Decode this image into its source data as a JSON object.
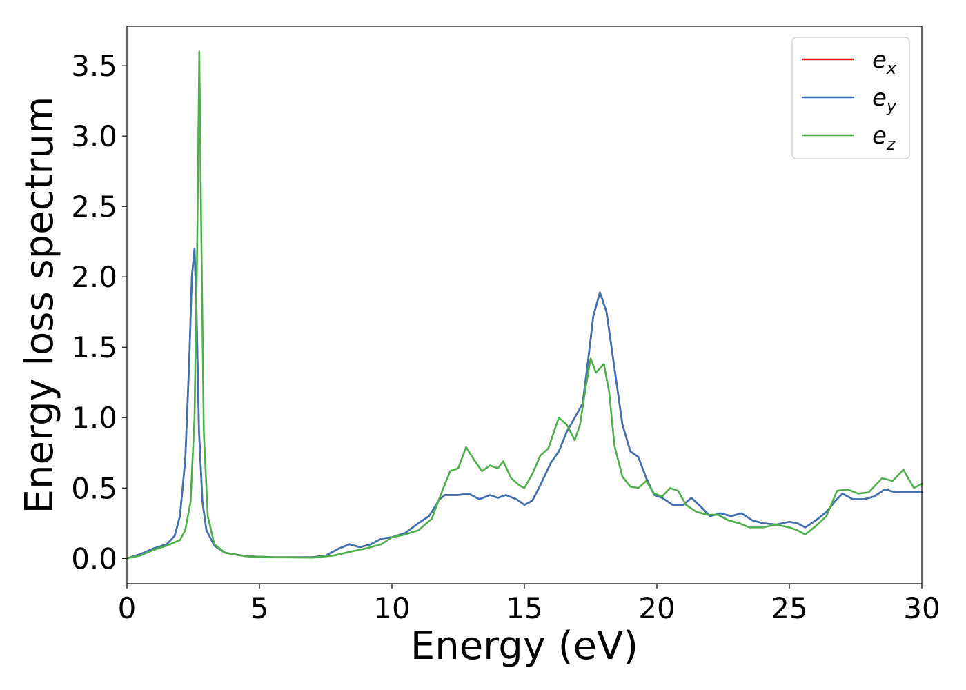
{
  "chart_data": {
    "type": "line",
    "xlabel": "Energy (eV)",
    "ylabel": "Energy loss spectrum",
    "xlim": [
      0,
      30
    ],
    "ylim": [
      -0.18,
      3.78
    ],
    "xticks": [
      0,
      5,
      10,
      15,
      20,
      25,
      30
    ],
    "xtick_labels": [
      "0",
      "5",
      "10",
      "15",
      "20",
      "25",
      "30"
    ],
    "yticks": [
      0.0,
      0.5,
      1.0,
      1.5,
      2.0,
      2.5,
      3.0,
      3.5
    ],
    "ytick_labels": [
      "0.0",
      "0.5",
      "1.0",
      "1.5",
      "2.0",
      "2.5",
      "3.0",
      "3.5"
    ],
    "grid": false,
    "legend_position": "top-right",
    "series": [
      {
        "name": "e",
        "subscript": "x",
        "color": "#e41a1c",
        "points": [
          [
            0,
            0.0
          ],
          [
            0.5,
            0.03
          ],
          [
            1.0,
            0.07
          ],
          [
            1.5,
            0.1
          ],
          [
            1.8,
            0.16
          ],
          [
            2.0,
            0.3
          ],
          [
            2.2,
            0.7
          ],
          [
            2.35,
            1.4
          ],
          [
            2.45,
            2.0
          ],
          [
            2.55,
            2.2
          ],
          [
            2.62,
            1.8
          ],
          [
            2.72,
            0.9
          ],
          [
            2.85,
            0.4
          ],
          [
            3.0,
            0.2
          ],
          [
            3.3,
            0.09
          ],
          [
            3.7,
            0.04
          ],
          [
            4.5,
            0.015
          ],
          [
            5.5,
            0.008
          ],
          [
            7.0,
            0.008
          ],
          [
            7.5,
            0.02
          ],
          [
            8.0,
            0.07
          ],
          [
            8.4,
            0.1
          ],
          [
            8.8,
            0.08
          ],
          [
            9.2,
            0.1
          ],
          [
            9.6,
            0.14
          ],
          [
            10.0,
            0.15
          ],
          [
            10.5,
            0.18
          ],
          [
            11.0,
            0.25
          ],
          [
            11.4,
            0.3
          ],
          [
            11.8,
            0.42
          ],
          [
            12.0,
            0.45
          ],
          [
            12.5,
            0.45
          ],
          [
            12.9,
            0.46
          ],
          [
            13.3,
            0.42
          ],
          [
            13.7,
            0.45
          ],
          [
            14.0,
            0.43
          ],
          [
            14.3,
            0.45
          ],
          [
            14.7,
            0.42
          ],
          [
            15.0,
            0.38
          ],
          [
            15.3,
            0.41
          ],
          [
            15.6,
            0.52
          ],
          [
            16.0,
            0.68
          ],
          [
            16.3,
            0.76
          ],
          [
            16.6,
            0.9
          ],
          [
            16.9,
            1.0
          ],
          [
            17.2,
            1.1
          ],
          [
            17.4,
            1.4
          ],
          [
            17.6,
            1.72
          ],
          [
            17.85,
            1.89
          ],
          [
            18.1,
            1.75
          ],
          [
            18.4,
            1.35
          ],
          [
            18.7,
            0.95
          ],
          [
            19.0,
            0.76
          ],
          [
            19.3,
            0.72
          ],
          [
            19.6,
            0.57
          ],
          [
            19.9,
            0.45
          ],
          [
            20.2,
            0.43
          ],
          [
            20.6,
            0.38
          ],
          [
            21.0,
            0.38
          ],
          [
            21.3,
            0.43
          ],
          [
            21.7,
            0.36
          ],
          [
            22.0,
            0.3
          ],
          [
            22.4,
            0.32
          ],
          [
            22.8,
            0.3
          ],
          [
            23.2,
            0.32
          ],
          [
            23.6,
            0.27
          ],
          [
            24.0,
            0.25
          ],
          [
            24.5,
            0.24
          ],
          [
            25.0,
            0.26
          ],
          [
            25.3,
            0.25
          ],
          [
            25.6,
            0.22
          ],
          [
            26.0,
            0.27
          ],
          [
            26.4,
            0.33
          ],
          [
            26.7,
            0.4
          ],
          [
            27.0,
            0.46
          ],
          [
            27.4,
            0.42
          ],
          [
            27.8,
            0.42
          ],
          [
            28.2,
            0.44
          ],
          [
            28.6,
            0.49
          ],
          [
            29.0,
            0.47
          ],
          [
            29.5,
            0.47
          ],
          [
            30.0,
            0.47
          ]
        ]
      },
      {
        "name": "e",
        "subscript": "y",
        "color": "#3b74b4",
        "points": [
          [
            0,
            0.0
          ],
          [
            0.5,
            0.03
          ],
          [
            1.0,
            0.07
          ],
          [
            1.5,
            0.1
          ],
          [
            1.8,
            0.16
          ],
          [
            2.0,
            0.3
          ],
          [
            2.2,
            0.7
          ],
          [
            2.35,
            1.4
          ],
          [
            2.45,
            2.0
          ],
          [
            2.55,
            2.2
          ],
          [
            2.62,
            1.8
          ],
          [
            2.72,
            0.9
          ],
          [
            2.85,
            0.4
          ],
          [
            3.0,
            0.2
          ],
          [
            3.3,
            0.09
          ],
          [
            3.7,
            0.04
          ],
          [
            4.5,
            0.015
          ],
          [
            5.5,
            0.008
          ],
          [
            7.0,
            0.008
          ],
          [
            7.5,
            0.02
          ],
          [
            8.0,
            0.07
          ],
          [
            8.4,
            0.1
          ],
          [
            8.8,
            0.08
          ],
          [
            9.2,
            0.1
          ],
          [
            9.6,
            0.14
          ],
          [
            10.0,
            0.15
          ],
          [
            10.5,
            0.18
          ],
          [
            11.0,
            0.25
          ],
          [
            11.4,
            0.3
          ],
          [
            11.8,
            0.42
          ],
          [
            12.0,
            0.45
          ],
          [
            12.5,
            0.45
          ],
          [
            12.9,
            0.46
          ],
          [
            13.3,
            0.42
          ],
          [
            13.7,
            0.45
          ],
          [
            14.0,
            0.43
          ],
          [
            14.3,
            0.45
          ],
          [
            14.7,
            0.42
          ],
          [
            15.0,
            0.38
          ],
          [
            15.3,
            0.41
          ],
          [
            15.6,
            0.52
          ],
          [
            16.0,
            0.68
          ],
          [
            16.3,
            0.76
          ],
          [
            16.6,
            0.9
          ],
          [
            16.9,
            1.0
          ],
          [
            17.2,
            1.1
          ],
          [
            17.4,
            1.4
          ],
          [
            17.6,
            1.72
          ],
          [
            17.85,
            1.89
          ],
          [
            18.1,
            1.75
          ],
          [
            18.4,
            1.35
          ],
          [
            18.7,
            0.95
          ],
          [
            19.0,
            0.76
          ],
          [
            19.3,
            0.72
          ],
          [
            19.6,
            0.57
          ],
          [
            19.9,
            0.45
          ],
          [
            20.2,
            0.43
          ],
          [
            20.6,
            0.38
          ],
          [
            21.0,
            0.38
          ],
          [
            21.3,
            0.43
          ],
          [
            21.7,
            0.36
          ],
          [
            22.0,
            0.3
          ],
          [
            22.4,
            0.32
          ],
          [
            22.8,
            0.3
          ],
          [
            23.2,
            0.32
          ],
          [
            23.6,
            0.27
          ],
          [
            24.0,
            0.25
          ],
          [
            24.5,
            0.24
          ],
          [
            25.0,
            0.26
          ],
          [
            25.3,
            0.25
          ],
          [
            25.6,
            0.22
          ],
          [
            26.0,
            0.27
          ],
          [
            26.4,
            0.33
          ],
          [
            26.7,
            0.4
          ],
          [
            27.0,
            0.46
          ],
          [
            27.4,
            0.42
          ],
          [
            27.8,
            0.42
          ],
          [
            28.2,
            0.44
          ],
          [
            28.6,
            0.49
          ],
          [
            29.0,
            0.47
          ],
          [
            29.5,
            0.47
          ],
          [
            30.0,
            0.47
          ]
        ]
      },
      {
        "name": "e",
        "subscript": "z",
        "color": "#4daf4a",
        "points": [
          [
            0,
            0.0
          ],
          [
            0.5,
            0.02
          ],
          [
            1.0,
            0.06
          ],
          [
            1.5,
            0.09
          ],
          [
            2.0,
            0.13
          ],
          [
            2.2,
            0.2
          ],
          [
            2.4,
            0.4
          ],
          [
            2.55,
            1.0
          ],
          [
            2.65,
            2.2
          ],
          [
            2.73,
            3.6
          ],
          [
            2.8,
            2.4
          ],
          [
            2.9,
            0.9
          ],
          [
            3.05,
            0.3
          ],
          [
            3.3,
            0.1
          ],
          [
            3.7,
            0.04
          ],
          [
            4.5,
            0.015
          ],
          [
            5.5,
            0.008
          ],
          [
            7.0,
            0.005
          ],
          [
            7.8,
            0.02
          ],
          [
            8.5,
            0.05
          ],
          [
            9.0,
            0.07
          ],
          [
            9.6,
            0.1
          ],
          [
            10.0,
            0.15
          ],
          [
            10.5,
            0.17
          ],
          [
            11.0,
            0.2
          ],
          [
            11.5,
            0.28
          ],
          [
            11.9,
            0.48
          ],
          [
            12.2,
            0.62
          ],
          [
            12.5,
            0.64
          ],
          [
            12.8,
            0.79
          ],
          [
            13.1,
            0.7
          ],
          [
            13.4,
            0.62
          ],
          [
            13.7,
            0.66
          ],
          [
            14.0,
            0.64
          ],
          [
            14.2,
            0.69
          ],
          [
            14.5,
            0.57
          ],
          [
            14.8,
            0.52
          ],
          [
            15.0,
            0.5
          ],
          [
            15.3,
            0.6
          ],
          [
            15.6,
            0.73
          ],
          [
            15.9,
            0.78
          ],
          [
            16.3,
            1.0
          ],
          [
            16.6,
            0.95
          ],
          [
            16.9,
            0.84
          ],
          [
            17.1,
            0.95
          ],
          [
            17.3,
            1.2
          ],
          [
            17.5,
            1.42
          ],
          [
            17.7,
            1.32
          ],
          [
            18.0,
            1.38
          ],
          [
            18.2,
            1.18
          ],
          [
            18.4,
            0.8
          ],
          [
            18.7,
            0.58
          ],
          [
            19.0,
            0.51
          ],
          [
            19.3,
            0.5
          ],
          [
            19.6,
            0.55
          ],
          [
            19.9,
            0.46
          ],
          [
            20.2,
            0.44
          ],
          [
            20.5,
            0.5
          ],
          [
            20.8,
            0.48
          ],
          [
            21.1,
            0.38
          ],
          [
            21.5,
            0.33
          ],
          [
            21.9,
            0.31
          ],
          [
            22.3,
            0.31
          ],
          [
            22.7,
            0.27
          ],
          [
            23.1,
            0.25
          ],
          [
            23.5,
            0.22
          ],
          [
            24.0,
            0.22
          ],
          [
            24.5,
            0.24
          ],
          [
            25.0,
            0.22
          ],
          [
            25.3,
            0.2
          ],
          [
            25.6,
            0.17
          ],
          [
            26.0,
            0.23
          ],
          [
            26.4,
            0.3
          ],
          [
            26.8,
            0.48
          ],
          [
            27.2,
            0.49
          ],
          [
            27.6,
            0.46
          ],
          [
            28.0,
            0.47
          ],
          [
            28.5,
            0.57
          ],
          [
            28.9,
            0.55
          ],
          [
            29.3,
            0.63
          ],
          [
            29.7,
            0.5
          ],
          [
            30.0,
            0.53
          ]
        ]
      }
    ]
  }
}
